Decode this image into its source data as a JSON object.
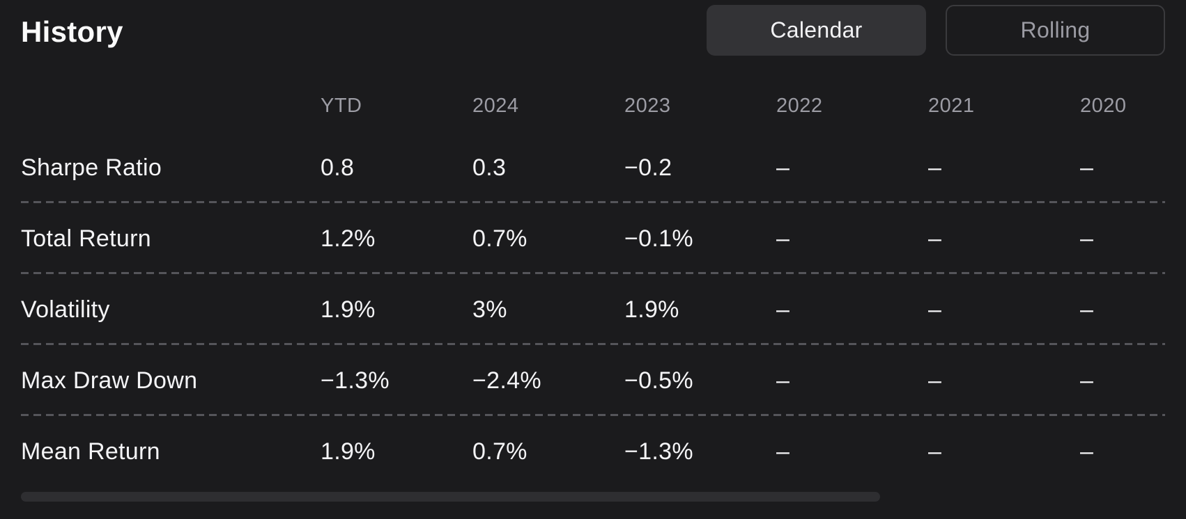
{
  "page": {
    "title": "History"
  },
  "view_toggle": {
    "calendar_label": "Calendar",
    "rolling_label": "Rolling",
    "active": "Calendar"
  },
  "colors": {
    "background": "#1b1b1d",
    "title_text": "#fafafa",
    "header_text": "#9c9ca4",
    "cell_text": "#f4f4f6",
    "divider_dash": "#55555a",
    "active_button_bg": "#333336",
    "inactive_button_border": "#3a3a3d",
    "scrollbar_thumb": "#2e2e31"
  },
  "chart_data": {
    "type": "table",
    "title": "History",
    "columns": [
      "YTD",
      "2024",
      "2023",
      "2022",
      "2021",
      "2020"
    ],
    "rows": [
      {
        "label": "Sharpe Ratio",
        "values": [
          "0.8",
          "0.3",
          "−0.2",
          "–",
          "–",
          "–"
        ]
      },
      {
        "label": "Total Return",
        "values": [
          "1.2%",
          "0.7%",
          "−0.1%",
          "–",
          "–",
          "–"
        ]
      },
      {
        "label": "Volatility",
        "values": [
          "1.9%",
          "3%",
          "1.9%",
          "–",
          "–",
          "–"
        ]
      },
      {
        "label": "Max Draw Down",
        "values": [
          "−1.3%",
          "−2.4%",
          "−0.5%",
          "–",
          "–",
          "–"
        ]
      },
      {
        "label": "Mean Return",
        "values": [
          "1.9%",
          "0.7%",
          "−1.3%",
          "–",
          "–",
          "–"
        ]
      }
    ]
  }
}
